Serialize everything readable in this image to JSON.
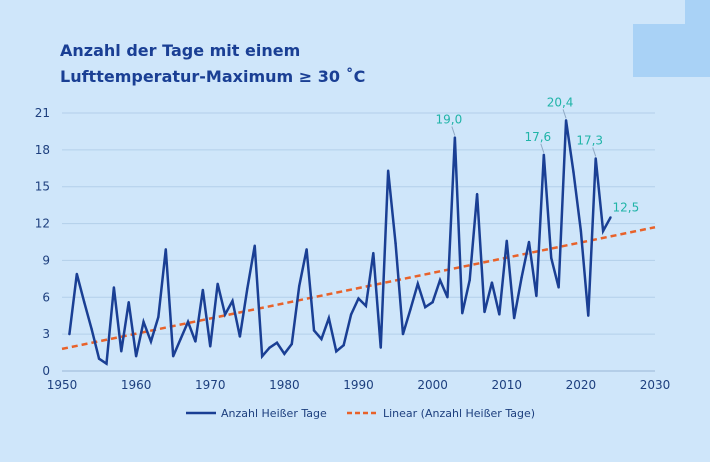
{
  "chart_data": {
    "type": "line",
    "title_line1": "Anzahl der Tage mit einem",
    "title_line2": "Lufttemperatur-Maximum ≥ 30 ˚C",
    "xlabel": "",
    "ylabel": "",
    "xlim": [
      1950,
      2030
    ],
    "ylim": [
      0,
      21
    ],
    "xticks": [
      1950,
      1960,
      1970,
      1980,
      1990,
      2000,
      2010,
      2020,
      2030
    ],
    "yticks": [
      0,
      3,
      6,
      9,
      12,
      15,
      18,
      21
    ],
    "grid": "horizontal",
    "legend_position": "bottom",
    "colors": {
      "series": "#1a3f94",
      "trend": "#e8622a",
      "labels": "#20b4a8",
      "grid": "#b3cfe9",
      "text": "#1d3f7e"
    },
    "series": [
      {
        "name": "Anzahl Heißer Tage",
        "x": [
          1951,
          1952,
          1953,
          1954,
          1955,
          1956,
          1957,
          1958,
          1959,
          1960,
          1961,
          1962,
          1963,
          1964,
          1965,
          1966,
          1967,
          1968,
          1969,
          1970,
          1971,
          1972,
          1973,
          1974,
          1975,
          1976,
          1977,
          1978,
          1979,
          1980,
          1981,
          1982,
          1983,
          1984,
          1985,
          1986,
          1987,
          1988,
          1989,
          1990,
          1991,
          1992,
          1993,
          1994,
          1995,
          1996,
          1997,
          1998,
          1999,
          2000,
          2001,
          2002,
          2003,
          2004,
          2005,
          2006,
          2007,
          2008,
          2009,
          2010,
          2011,
          2012,
          2013,
          2014,
          2015,
          2016,
          2017,
          2018,
          2019,
          2020,
          2021,
          2022,
          2023,
          2024
        ],
        "values": [
          3.0,
          7.9,
          5.6,
          3.4,
          1.0,
          0.6,
          6.8,
          1.6,
          5.6,
          1.2,
          4.0,
          2.4,
          4.4,
          9.9,
          1.2,
          2.6,
          4.0,
          2.4,
          6.6,
          2.0,
          7.1,
          4.6,
          5.7,
          2.8,
          6.7,
          10.2,
          1.2,
          1.9,
          2.3,
          1.4,
          2.2,
          6.9,
          9.9,
          3.3,
          2.6,
          4.3,
          1.6,
          2.1,
          4.6,
          5.9,
          5.3,
          9.6,
          1.9,
          16.3,
          10.4,
          3.0,
          5.0,
          7.1,
          5.2,
          5.6,
          7.4,
          6.0,
          19.0,
          4.7,
          7.4,
          14.4,
          4.8,
          7.2,
          4.6,
          10.6,
          4.3,
          7.6,
          10.5,
          6.1,
          17.6,
          9.2,
          6.8,
          20.4,
          16.2,
          11.4,
          4.5,
          17.3,
          11.4,
          12.5
        ]
      },
      {
        "name": "Linear (Anzahl Heißer Tage)",
        "x": [
          1950,
          2030
        ],
        "values": [
          1.8,
          11.7
        ]
      }
    ],
    "annotations": [
      {
        "x": 2003,
        "y": 19.0,
        "text": "19,0"
      },
      {
        "x": 2015,
        "y": 17.6,
        "text": "17,6"
      },
      {
        "x": 2018,
        "y": 20.4,
        "text": "20,4"
      },
      {
        "x": 2022,
        "y": 17.3,
        "text": "17,3"
      },
      {
        "x": 2024,
        "y": 12.5,
        "text": "12,5"
      }
    ]
  }
}
